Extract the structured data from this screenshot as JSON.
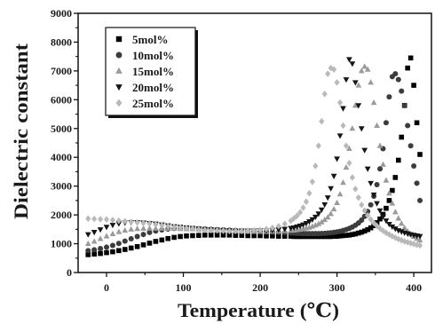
{
  "chart_data": {
    "type": "scatter",
    "xlabel": "Temperature (℃)",
    "ylabel": "Dielectric constant",
    "xlim": [
      -37,
      423
    ],
    "ylim": [
      0,
      9000
    ],
    "xticks": [
      0,
      100,
      200,
      300,
      400
    ],
    "yticks": [
      0,
      1000,
      2000,
      3000,
      4000,
      5000,
      6000,
      7000,
      8000,
      9000
    ],
    "grid": false,
    "legend_position": "top-left",
    "x": [
      -24,
      -16,
      -8,
      0,
      8,
      16,
      24,
      32,
      40,
      48,
      56,
      64,
      72,
      80,
      88,
      96,
      104,
      112,
      120,
      128,
      136,
      144,
      152,
      160,
      168,
      176,
      184,
      192,
      200,
      208,
      216,
      224,
      232,
      240,
      244,
      248,
      252,
      256,
      260,
      264,
      268,
      272,
      276,
      280,
      284,
      288,
      292,
      296,
      300,
      304,
      308,
      312,
      316,
      320,
      324,
      328,
      332,
      336,
      340,
      344,
      348,
      352,
      356,
      360,
      364,
      368,
      372,
      376,
      380,
      384,
      388,
      392,
      396,
      400,
      404,
      408
    ],
    "series": [
      {
        "name": "5mol%",
        "marker": "square",
        "color": "#000000",
        "values": [
          620,
          640,
          660,
          690,
          720,
          760,
          800,
          850,
          900,
          960,
          1020,
          1080,
          1130,
          1180,
          1220,
          1250,
          1270,
          1280,
          1290,
          1300,
          1300,
          1300,
          1300,
          1300,
          1290,
          1290,
          1280,
          1280,
          1280,
          1270,
          1270,
          1260,
          1260,
          1260,
          1250,
          1250,
          1250,
          1250,
          1250,
          1250,
          1250,
          1250,
          1250,
          1250,
          1250,
          1250,
          1250,
          1260,
          1260,
          1270,
          1280,
          1290,
          1300,
          1320,
          1340,
          1370,
          1400,
          1440,
          1490,
          1550,
          1630,
          1730,
          1860,
          2020,
          2230,
          2500,
          2850,
          3300,
          3900,
          4700,
          5800,
          7100,
          7450,
          6500,
          5200,
          4100
        ]
      },
      {
        "name": "10mol%",
        "marker": "circle",
        "color": "#3c3c3c",
        "values": [
          760,
          790,
          830,
          880,
          940,
          1010,
          1090,
          1170,
          1250,
          1320,
          1390,
          1440,
          1480,
          1510,
          1530,
          1540,
          1540,
          1530,
          1520,
          1510,
          1500,
          1490,
          1480,
          1470,
          1460,
          1450,
          1440,
          1430,
          1420,
          1410,
          1400,
          1390,
          1380,
          1370,
          1365,
          1360,
          1355,
          1350,
          1350,
          1350,
          1350,
          1350,
          1350,
          1355,
          1360,
          1370,
          1380,
          1395,
          1410,
          1430,
          1460,
          1490,
          1530,
          1580,
          1640,
          1720,
          1820,
          1950,
          2120,
          2350,
          2650,
          3050,
          3600,
          4300,
          5200,
          6100,
          6800,
          6900,
          6700,
          6300,
          5800,
          5100,
          4400,
          3700,
          3100,
          2500
        ]
      },
      {
        "name": "15mol%",
        "marker": "triangle-up",
        "color": "#9a9a9a",
        "values": [
          1000,
          1080,
          1170,
          1260,
          1340,
          1410,
          1460,
          1500,
          1520,
          1530,
          1530,
          1530,
          1530,
          1530,
          1525,
          1520,
          1515,
          1510,
          1500,
          1490,
          1480,
          1470,
          1460,
          1450,
          1440,
          1430,
          1425,
          1420,
          1420,
          1420,
          1425,
          1430,
          1440,
          1455,
          1465,
          1480,
          1495,
          1515,
          1540,
          1565,
          1600,
          1640,
          1690,
          1750,
          1830,
          1920,
          2040,
          2200,
          2420,
          2720,
          3120,
          3650,
          4300,
          5000,
          5800,
          6500,
          7000,
          7150,
          7050,
          6600,
          5900,
          5100,
          4400,
          3750,
          3200,
          2750,
          2400,
          2100,
          1880,
          1700,
          1550,
          1430,
          1330,
          1250,
          1180,
          1120
        ]
      },
      {
        "name": "20mol%",
        "marker": "triangle-down",
        "color": "#151515",
        "values": [
          1320,
          1400,
          1490,
          1580,
          1650,
          1700,
          1730,
          1740,
          1740,
          1730,
          1710,
          1690,
          1660,
          1630,
          1600,
          1580,
          1560,
          1540,
          1520,
          1500,
          1490,
          1480,
          1470,
          1460,
          1450,
          1450,
          1450,
          1450,
          1455,
          1460,
          1470,
          1490,
          1510,
          1540,
          1560,
          1590,
          1620,
          1660,
          1710,
          1770,
          1840,
          1930,
          2040,
          2180,
          2360,
          2600,
          2920,
          3350,
          3950,
          4750,
          5700,
          6700,
          7400,
          7250,
          6600,
          5800,
          5000,
          4250,
          3600,
          3100,
          2700,
          2400,
          2150,
          1950,
          1800,
          1680,
          1590,
          1520,
          1460,
          1420,
          1380,
          1350,
          1320,
          1300,
          1280,
          1260
        ]
      },
      {
        "name": "25mol%",
        "marker": "diamond",
        "color": "#b9b9b9",
        "values": [
          1870,
          1860,
          1850,
          1840,
          1820,
          1800,
          1780,
          1760,
          1740,
          1720,
          1700,
          1670,
          1640,
          1610,
          1580,
          1560,
          1540,
          1520,
          1500,
          1480,
          1470,
          1460,
          1450,
          1440,
          1440,
          1440,
          1450,
          1460,
          1480,
          1510,
          1550,
          1610,
          1690,
          1800,
          1880,
          1970,
          2090,
          2250,
          2460,
          2750,
          3150,
          3700,
          4400,
          5250,
          6200,
          6900,
          7100,
          7050,
          6600,
          5900,
          5100,
          4400,
          3800,
          3300,
          2900,
          2600,
          2350,
          2150,
          1980,
          1840,
          1720,
          1620,
          1530,
          1450,
          1380,
          1320,
          1260,
          1210,
          1160,
          1120,
          1080,
          1050,
          1020,
          990,
          960,
          940
        ]
      }
    ]
  }
}
